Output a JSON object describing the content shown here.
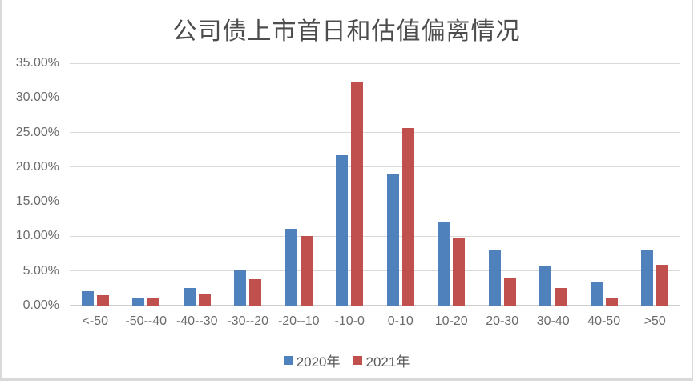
{
  "chart_data": {
    "type": "bar",
    "title": "公司债上市首日和估值偏离情况",
    "categories": [
      "<-50",
      "-50--40",
      "-40--30",
      "-30--20",
      "-20--10",
      "-10-0",
      "0-10",
      "10-20",
      "20-30",
      "30-40",
      "40-50",
      ">50"
    ],
    "series": [
      {
        "name": "2020年",
        "color": "#4F81BD",
        "values": [
          2.1,
          1.0,
          2.6,
          5.1,
          11.1,
          21.7,
          18.9,
          12.0,
          8.0,
          5.8,
          3.4,
          8.0
        ]
      },
      {
        "name": "2021年",
        "color": "#C0504D",
        "values": [
          1.5,
          1.2,
          1.7,
          3.8,
          10.1,
          32.2,
          25.7,
          9.8,
          4.1,
          2.6,
          1.0,
          5.9
        ]
      }
    ],
    "y_ticks": [
      "0.00%",
      "5.00%",
      "10.00%",
      "15.00%",
      "20.00%",
      "25.00%",
      "30.00%",
      "35.00%"
    ],
    "ylim": [
      0,
      35
    ],
    "y_step": 5,
    "grid": "horizontal",
    "legend_position": "bottom",
    "unit": "percent"
  }
}
